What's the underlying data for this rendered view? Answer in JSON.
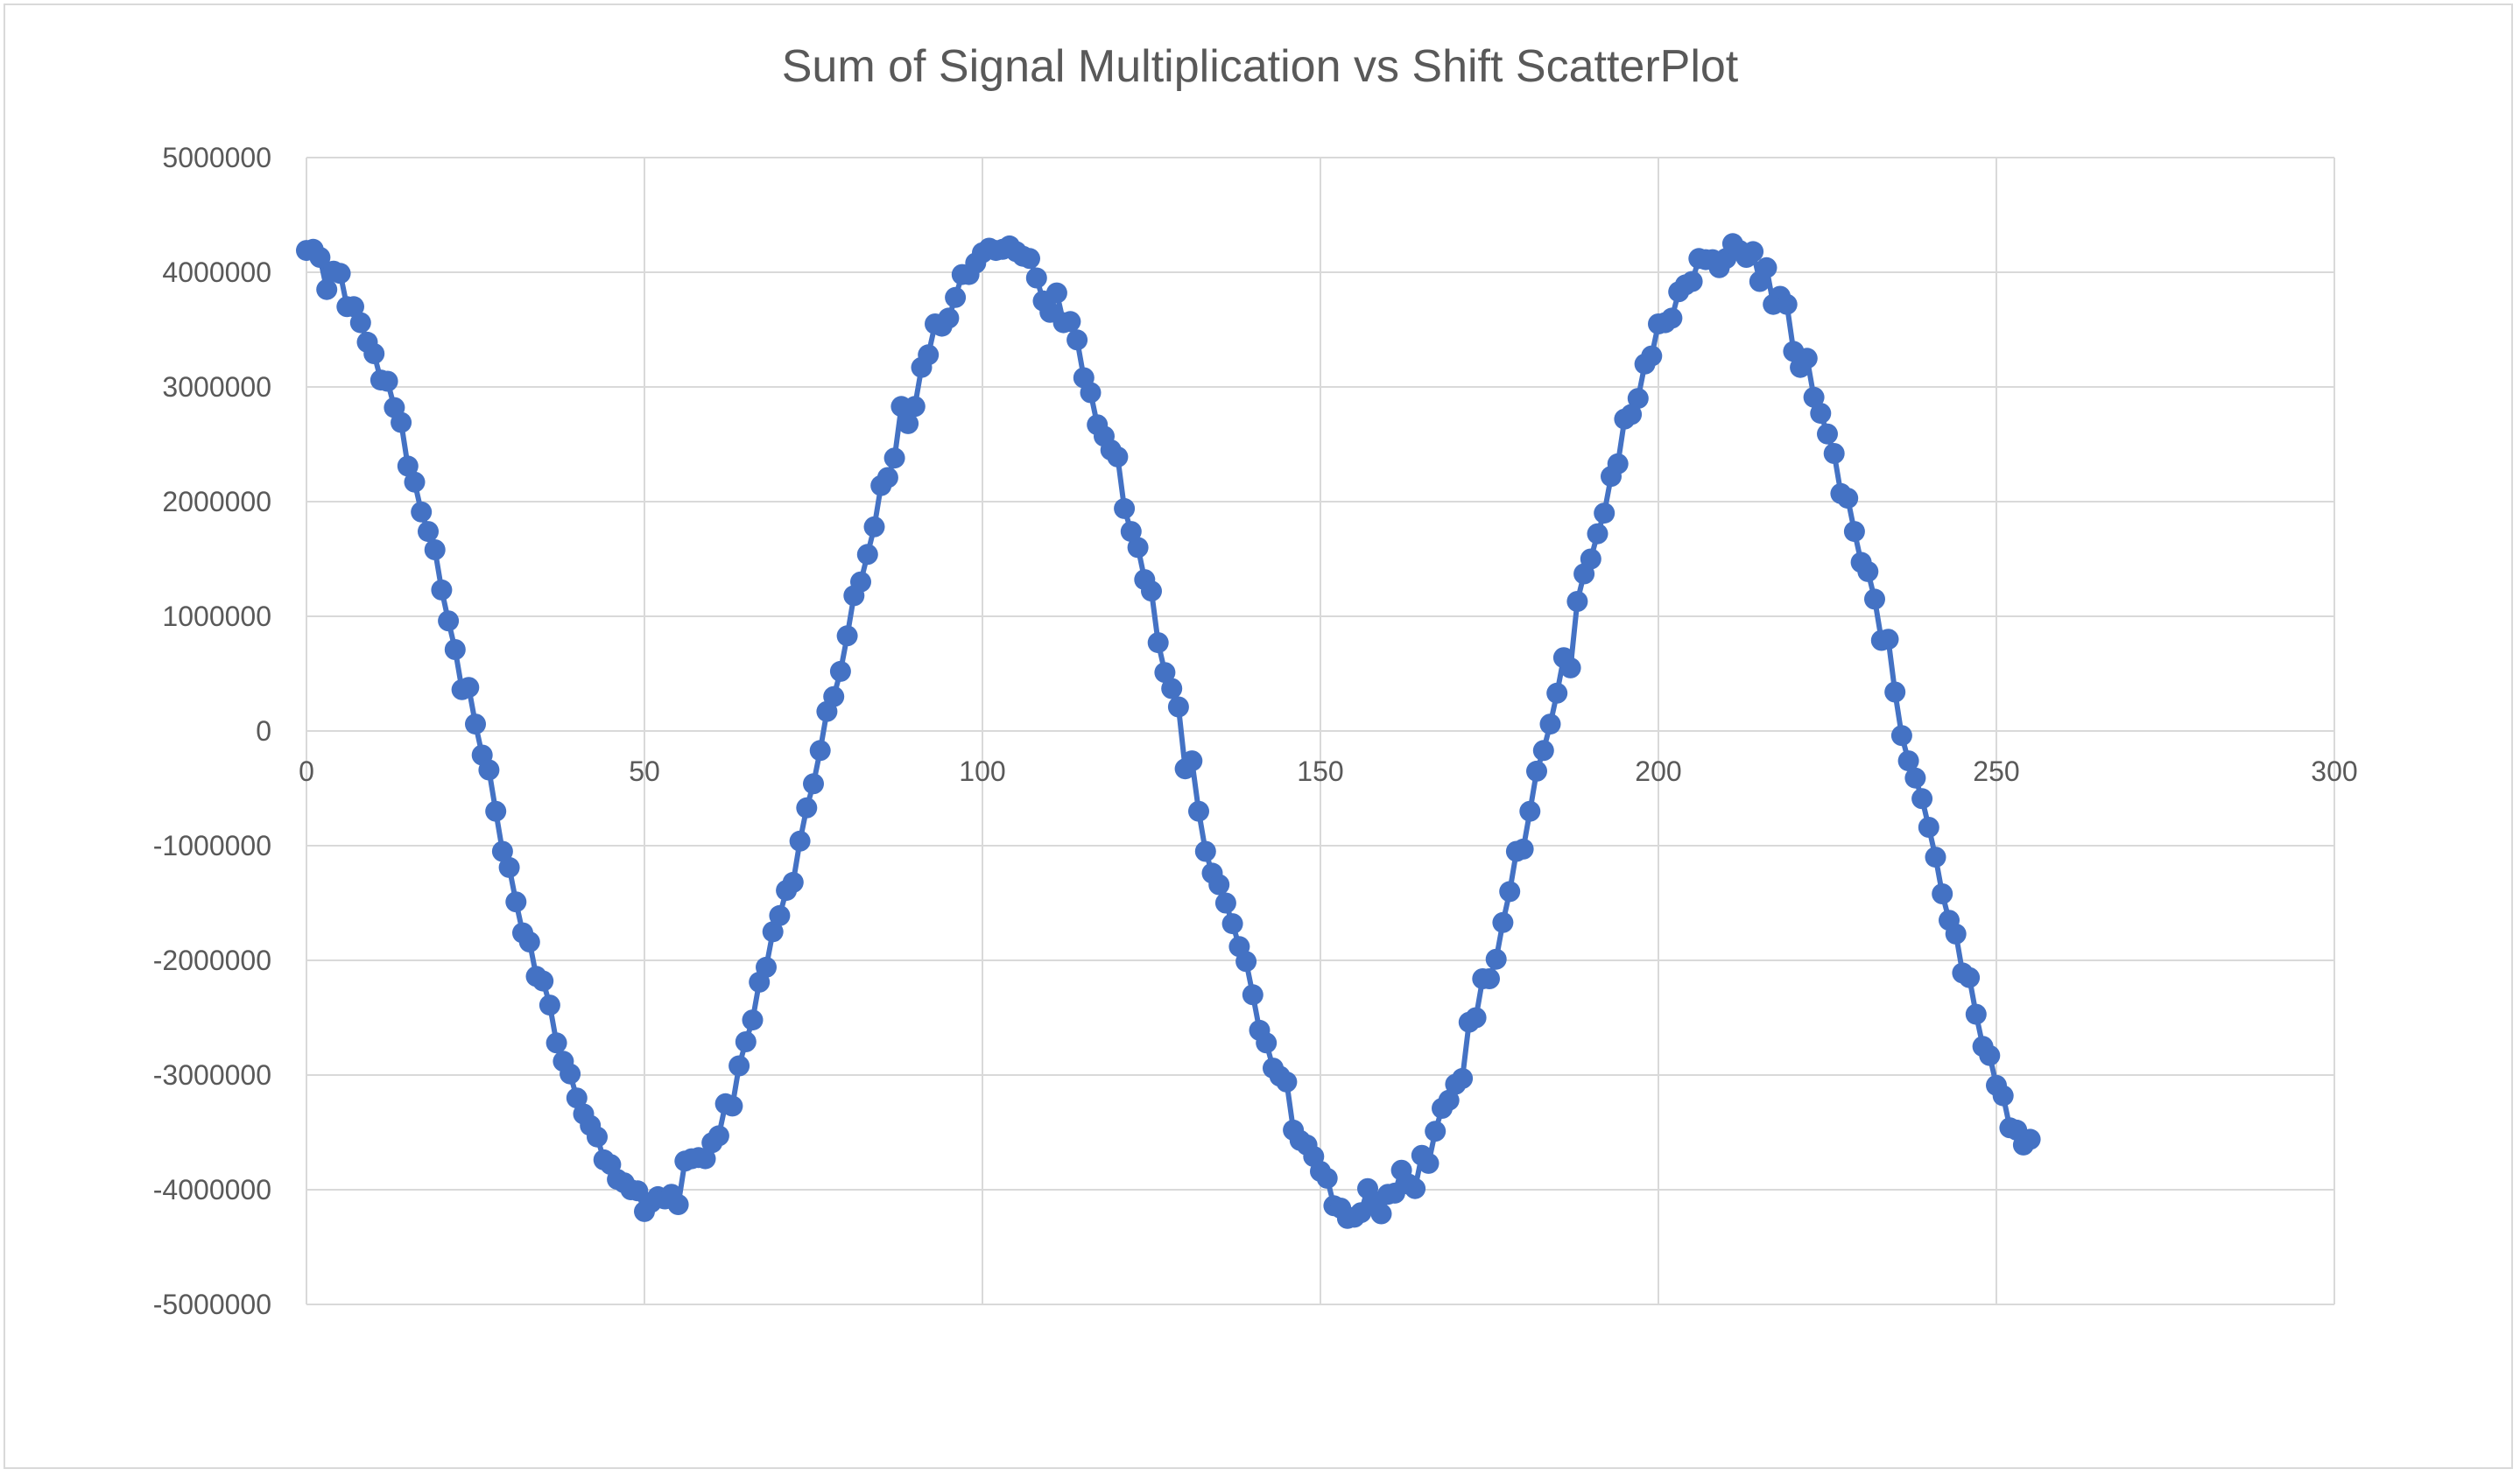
{
  "chart_data": {
    "type": "scatter",
    "title": "Sum of Signal Multiplication vs Shift ScatterPlot",
    "xlabel": "",
    "ylabel": "",
    "xlim": [
      0,
      300
    ],
    "ylim": [
      -5000000,
      5000000
    ],
    "x_ticks": [
      0,
      50,
      100,
      150,
      200,
      250,
      300
    ],
    "y_ticks": [
      5000000,
      4000000,
      3000000,
      2000000,
      1000000,
      0,
      -1000000,
      -2000000,
      -3000000,
      -4000000,
      -5000000
    ],
    "x_tick_labels": [
      "0",
      "50",
      "100",
      "150",
      "200",
      "250",
      "300"
    ],
    "y_tick_labels": [
      "5000000",
      "4000000",
      "3000000",
      "2000000",
      "1000000",
      "0",
      "-1000000",
      "-2000000",
      "-3000000",
      "-4000000",
      "-5000000"
    ],
    "grid": true,
    "legend": "none",
    "series": [
      {
        "color": "#4472c4",
        "markers": true,
        "lines": true,
        "x": [
          0,
          1,
          2,
          3,
          4,
          5,
          6,
          7,
          8,
          9,
          10,
          11,
          12,
          13,
          14,
          15,
          16,
          17,
          18,
          19,
          20,
          21,
          22,
          23,
          24,
          25,
          26,
          27,
          28,
          29,
          30,
          31,
          32,
          33,
          34,
          35,
          36,
          37,
          38,
          39,
          40,
          41,
          42,
          43,
          44,
          45,
          46,
          47,
          48,
          49,
          50,
          51,
          52,
          53,
          54,
          55,
          56,
          57,
          58,
          59,
          60,
          61,
          62,
          63,
          64,
          65,
          66,
          67,
          68,
          69,
          70,
          71,
          72,
          73,
          74,
          75,
          76,
          77,
          78,
          79,
          80,
          81,
          82,
          83,
          84,
          85,
          86,
          87,
          88,
          89,
          90,
          91,
          92,
          93,
          94,
          95,
          96,
          97,
          98,
          99,
          100,
          101,
          102,
          103,
          104,
          105,
          106,
          107,
          108,
          109,
          110,
          111,
          112,
          113,
          114,
          115,
          116,
          117,
          118,
          119,
          120,
          121,
          122,
          123,
          124,
          125,
          126,
          127,
          128,
          129,
          130,
          131,
          132,
          133,
          134,
          135,
          136,
          137,
          138,
          139,
          140,
          141,
          142,
          143,
          144,
          145,
          146,
          147,
          148,
          149,
          150,
          151,
          152,
          153,
          154,
          155,
          156,
          157,
          158,
          159,
          160,
          161,
          162,
          163,
          164,
          165,
          166,
          167,
          168,
          169,
          170,
          171,
          172,
          173,
          174,
          175,
          176,
          177,
          178,
          179,
          180,
          181,
          182,
          183,
          184,
          185,
          186,
          187,
          188,
          189,
          190,
          191,
          192,
          193,
          194,
          195,
          196,
          197,
          198,
          199,
          200,
          201,
          202,
          203,
          204,
          205,
          206,
          207,
          208,
          209,
          210,
          211,
          212,
          213,
          214,
          215,
          216,
          217,
          218,
          219,
          220,
          221,
          222,
          223,
          224,
          225,
          226,
          227,
          228,
          229,
          230,
          231,
          232,
          233,
          234,
          235,
          236,
          237,
          238,
          239,
          240,
          241,
          242,
          243,
          244,
          245,
          246,
          247,
          248,
          249,
          250,
          251,
          252,
          253,
          254,
          255
        ],
        "y": [
          4190000,
          4200000,
          4130000,
          3850000,
          4010000,
          3990000,
          3700000,
          3700000,
          3560000,
          3390000,
          3290000,
          3060000,
          3050000,
          2820000,
          2690000,
          2310000,
          2170000,
          1910000,
          1740000,
          1580000,
          1230000,
          960000,
          710000,
          360000,
          380000,
          60000,
          -210000,
          -340000,
          -700000,
          -1050000,
          -1190000,
          -1490000,
          -1760000,
          -1840000,
          -2140000,
          -2180000,
          -2390000,
          -2720000,
          -2880000,
          -2990000,
          -3200000,
          -3340000,
          -3440000,
          -3540000,
          -3740000,
          -3780000,
          -3910000,
          -3940000,
          -4000000,
          -4010000,
          -4190000,
          -4110000,
          -4060000,
          -4080000,
          -4040000,
          -4130000,
          -3750000,
          -3730000,
          -3720000,
          -3730000,
          -3590000,
          -3530000,
          -3250000,
          -3270000,
          -2920000,
          -2710000,
          -2520000,
          -2190000,
          -2060000,
          -1750000,
          -1610000,
          -1390000,
          -1320000,
          -960000,
          -670000,
          -460000,
          -170000,
          170000,
          300000,
          520000,
          830000,
          1180000,
          1300000,
          1540000,
          1780000,
          2140000,
          2210000,
          2380000,
          2830000,
          2680000,
          2830000,
          3170000,
          3280000,
          3550000,
          3530000,
          3600000,
          3780000,
          3980000,
          3980000,
          4080000,
          4170000,
          4210000,
          4190000,
          4200000,
          4230000,
          4180000,
          4140000,
          4120000,
          3950000,
          3750000,
          3650000,
          3820000,
          3560000,
          3570000,
          3410000,
          3080000,
          2950000,
          2670000,
          2570000,
          2450000,
          2390000,
          1940000,
          1740000,
          1600000,
          1320000,
          1220000,
          770000,
          510000,
          370000,
          210000,
          -330000,
          -260000,
          -700000,
          -1050000,
          -1240000,
          -1340000,
          -1500000,
          -1680000,
          -1880000,
          -2010000,
          -2300000,
          -2610000,
          -2720000,
          -2940000,
          -3010000,
          -3060000,
          -3480000,
          -3570000,
          -3610000,
          -3710000,
          -3840000,
          -3900000,
          -4140000,
          -4160000,
          -4250000,
          -4240000,
          -4200000,
          -3990000,
          -4100000,
          -4210000,
          -4040000,
          -4030000,
          -3830000,
          -3950000,
          -3990000,
          -3700000,
          -3770000,
          -3490000,
          -3290000,
          -3220000,
          -3080000,
          -3030000,
          -2540000,
          -2500000,
          -2160000,
          -2160000,
          -1990000,
          -1670000,
          -1400000,
          -1050000,
          -1030000,
          -700000,
          -350000,
          -170000,
          60000,
          330000,
          640000,
          550000,
          1130000,
          1370000,
          1500000,
          1720000,
          1900000,
          2220000,
          2330000,
          2720000,
          2760000,
          2900000,
          3200000,
          3270000,
          3550000,
          3560000,
          3600000,
          3830000,
          3890000,
          3920000,
          4120000,
          4110000,
          4110000,
          4040000,
          4120000,
          4250000,
          4190000,
          4130000,
          4180000,
          3920000,
          4040000,
          3720000,
          3790000,
          3720000,
          3310000,
          3170000,
          3250000,
          2910000,
          2770000,
          2590000,
          2420000,
          2070000,
          2030000,
          1740000,
          1470000,
          1390000,
          1150000,
          790000,
          800000,
          340000,
          -40000,
          -260000,
          -410000,
          -590000,
          -840000,
          -1100000,
          -1420000,
          -1650000,
          -1770000,
          -2110000,
          -2150000,
          -2470000,
          -2750000,
          -2830000,
          -3090000,
          -3180000,
          -3460000,
          -3480000,
          -3610000,
          -3560000
        ]
      }
    ]
  }
}
